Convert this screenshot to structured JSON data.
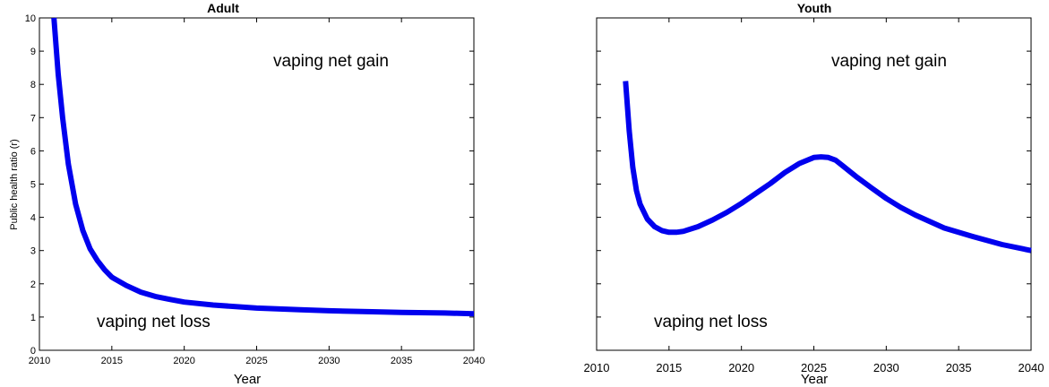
{
  "chart_data": [
    {
      "type": "line",
      "title": "Adult",
      "xlabel": "Year",
      "ylabel": "Public health ratio (r)",
      "xlim": [
        2010,
        2040
      ],
      "ylim": [
        0,
        10
      ],
      "xticks": [
        "2010",
        "2015",
        "2020",
        "2025",
        "2030",
        "2035",
        "2040"
      ],
      "yticks": [
        "0",
        "1",
        "2",
        "3",
        "4",
        "5",
        "6",
        "7",
        "8",
        "9",
        "10"
      ],
      "annotations": [
        {
          "text": "vaping net gain",
          "x": 2027.2,
          "y": 8.9
        },
        {
          "text": "vaping net loss",
          "x": 2013.7,
          "y": 0.85
        }
      ],
      "line_color": "#0000ee",
      "series": [
        {
          "x": [
            2011.0,
            2011.3,
            2011.6,
            2012.0,
            2012.5,
            2013.0,
            2013.5,
            2014.0,
            2014.5,
            2015.0,
            2016.0,
            2017.0,
            2018.0,
            2019.0,
            2020.0,
            2022.0,
            2025.0,
            2028.0,
            2030.0,
            2033.0,
            2035.0,
            2038.0,
            2040.0
          ],
          "y": [
            10.0,
            8.3,
            7.0,
            5.6,
            4.4,
            3.6,
            3.05,
            2.7,
            2.42,
            2.2,
            1.95,
            1.75,
            1.62,
            1.53,
            1.45,
            1.36,
            1.27,
            1.22,
            1.19,
            1.16,
            1.14,
            1.12,
            1.1
          ]
        }
      ]
    },
    {
      "type": "line",
      "title": "Youth",
      "xlabel": "Year",
      "xlim": [
        2010,
        2040
      ],
      "ylim": [
        0,
        10
      ],
      "xticks": [
        "2010",
        "2015",
        "2020",
        "2025",
        "2030",
        "2035",
        "2040"
      ],
      "annotations": [
        {
          "text": "vaping net gain",
          "x": 2026.3,
          "y": 8.9
        },
        {
          "text": "vaping net loss",
          "x": 2013.7,
          "y": 0.85
        }
      ],
      "line_color": "#0000ee",
      "series": [
        {
          "x": [
            2012.0,
            2012.25,
            2012.5,
            2012.75,
            2013.0,
            2013.5,
            2014.0,
            2014.5,
            2015.0,
            2015.5,
            2016.0,
            2017.0,
            2018.0,
            2019.0,
            2020.0,
            2021.0,
            2022.0,
            2023.0,
            2024.0,
            2025.0,
            2025.5,
            2026.0,
            2026.5,
            2027.0,
            2028.0,
            2029.0,
            2030.0,
            2031.0,
            2032.0,
            2034.0,
            2036.0,
            2038.0,
            2040.0
          ],
          "y": [
            8.1,
            6.6,
            5.5,
            4.8,
            4.4,
            3.95,
            3.72,
            3.6,
            3.55,
            3.55,
            3.58,
            3.72,
            3.92,
            4.15,
            4.42,
            4.72,
            5.02,
            5.35,
            5.62,
            5.8,
            5.82,
            5.8,
            5.72,
            5.55,
            5.2,
            4.88,
            4.57,
            4.3,
            4.07,
            3.68,
            3.42,
            3.18,
            3.0
          ]
        }
      ]
    }
  ]
}
